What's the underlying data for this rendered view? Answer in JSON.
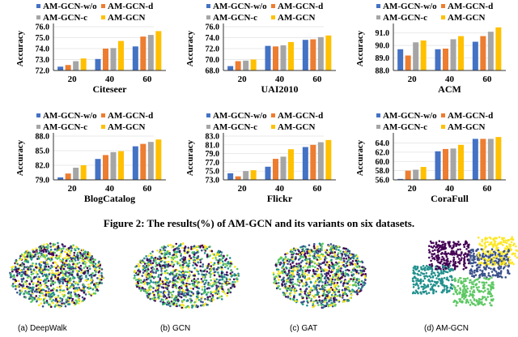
{
  "figure_caption": "Figure 2: The results(%) of AM-GCN and its variants on six datasets.",
  "legend": [
    "AM-GCN-w/o",
    "AM-GCN-d",
    "AM-GCN-c",
    "AM-GCN"
  ],
  "colors": [
    "#4472C4",
    "#ED7D31",
    "#A5A5A5",
    "#FFC000"
  ],
  "chart_data": [
    {
      "type": "bar",
      "title": "Citeseer",
      "ylabel": "Accuracy",
      "categories": [
        "20",
        "40",
        "60"
      ],
      "ylim": [
        72,
        76
      ],
      "yticks": [
        "72.0",
        "73.0",
        "74.0",
        "75.0",
        "76.0"
      ],
      "series": [
        {
          "name": "AM-GCN-w/o",
          "values": [
            72.35,
            73.05,
            74.2
          ]
        },
        {
          "name": "AM-GCN-d",
          "values": [
            72.5,
            74.0,
            75.1
          ]
        },
        {
          "name": "AM-GCN-c",
          "values": [
            72.85,
            74.05,
            75.25
          ]
        },
        {
          "name": "AM-GCN",
          "values": [
            73.1,
            74.7,
            75.6
          ]
        }
      ]
    },
    {
      "type": "bar",
      "title": "UAI2010",
      "ylabel": "Accuracy",
      "categories": [
        "20",
        "40",
        "60"
      ],
      "ylim": [
        68,
        76
      ],
      "yticks": [
        "68.0",
        "70.0",
        "72.0",
        "74.0",
        "76.0"
      ],
      "series": [
        {
          "name": "AM-GCN-w/o",
          "values": [
            68.8,
            72.5,
            73.6
          ]
        },
        {
          "name": "AM-GCN-d",
          "values": [
            69.7,
            72.4,
            73.7
          ]
        },
        {
          "name": "AM-GCN-c",
          "values": [
            69.8,
            72.6,
            74.1
          ]
        },
        {
          "name": "AM-GCN",
          "values": [
            70.0,
            73.2,
            74.4
          ]
        }
      ]
    },
    {
      "type": "bar",
      "title": "ACM",
      "ylabel": "Accuracy",
      "categories": [
        "20",
        "40",
        "60"
      ],
      "ylim": [
        88,
        91.5
      ],
      "yticks": [
        "88.0",
        "89.0",
        "90.0",
        "91.0"
      ],
      "series": [
        {
          "name": "AM-GCN-w/o",
          "values": [
            89.7,
            89.7,
            90.3
          ]
        },
        {
          "name": "AM-GCN-d",
          "values": [
            89.2,
            89.75,
            90.75
          ]
        },
        {
          "name": "AM-GCN-c",
          "values": [
            90.25,
            90.5,
            91.1
          ]
        },
        {
          "name": "AM-GCN",
          "values": [
            90.4,
            90.75,
            91.45
          ]
        }
      ]
    },
    {
      "type": "bar",
      "title": "BlogCatalog",
      "ylabel": "Accuracy",
      "categories": [
        "20",
        "40",
        "60"
      ],
      "ylim": [
        79,
        88
      ],
      "yticks": [
        "79.0",
        "82.0",
        "85.0",
        "88.0"
      ],
      "series": [
        {
          "name": "AM-GCN-w/o",
          "values": [
            79.5,
            83.3,
            85.9
          ]
        },
        {
          "name": "AM-GCN-d",
          "values": [
            80.3,
            84.1,
            86.4
          ]
        },
        {
          "name": "AM-GCN-c",
          "values": [
            81.5,
            84.7,
            86.8
          ]
        },
        {
          "name": "AM-GCN",
          "values": [
            82.0,
            84.9,
            87.3
          ]
        }
      ]
    },
    {
      "type": "bar",
      "title": "Flickr",
      "ylabel": "Accuracy",
      "categories": [
        "20",
        "40",
        "60"
      ],
      "ylim": [
        73,
        83
      ],
      "yticks": [
        "73.0",
        "75.0",
        "77.0",
        "79.0",
        "81.0",
        "83.0"
      ],
      "series": [
        {
          "name": "AM-GCN-w/o",
          "values": [
            74.5,
            76.0,
            80.5
          ]
        },
        {
          "name": "AM-GCN-d",
          "values": [
            73.8,
            77.8,
            81.0
          ]
        },
        {
          "name": "AM-GCN-c",
          "values": [
            75.0,
            78.3,
            81.6
          ]
        },
        {
          "name": "AM-GCN",
          "values": [
            75.2,
            80.0,
            82.1
          ]
        }
      ]
    },
    {
      "type": "bar",
      "title": "CoraFull",
      "ylabel": "Accuracy",
      "categories": [
        "20",
        "40",
        "60"
      ],
      "ylim": [
        56,
        65.5
      ],
      "yticks": [
        "56.0",
        "58.0",
        "60.0",
        "62.0",
        "64.0"
      ],
      "series": [
        {
          "name": "AM-GCN-w/o",
          "values": [
            56.2,
            62.2,
            64.9
          ]
        },
        {
          "name": "AM-GCN-d",
          "values": [
            58.0,
            62.7,
            64.9
          ]
        },
        {
          "name": "AM-GCN-c",
          "values": [
            58.2,
            62.8,
            64.9
          ]
        },
        {
          "name": "AM-GCN",
          "values": [
            58.8,
            63.6,
            65.3
          ]
        }
      ]
    }
  ],
  "scatter_captions": [
    "(a) DeepWalk",
    "(b) GCN",
    "(c) GAT",
    "(d) AM-GCN"
  ],
  "scatter_colors": [
    "#440154",
    "#3b528b",
    "#21908d",
    "#5dc863",
    "#fde725"
  ]
}
